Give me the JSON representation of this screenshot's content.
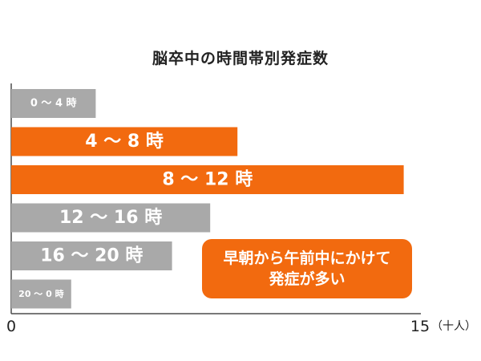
{
  "colors": {
    "highlight": "#f26a0f",
    "normal": "#a9a9a9",
    "axis": "#4d4d4d",
    "text": "#222222"
  },
  "chart_data": {
    "type": "bar",
    "orientation": "horizontal",
    "title": "脳卒中の時間帯別発症数",
    "categories": [
      "0～4時",
      "4～8時",
      "8～12時",
      "12～16時",
      "16～20時",
      "20～0時"
    ],
    "bar_labels": [
      "0 ～ 4 時",
      "4 ～ 8 時",
      "8 ～ 12 時",
      "12 ～ 16 時",
      "16 ～ 20 時",
      "20 ～ 0 時"
    ],
    "values": [
      3.1,
      8.3,
      14.4,
      7.3,
      5.9,
      2.2
    ],
    "highlighted": [
      false,
      true,
      true,
      false,
      false,
      false
    ],
    "xlim": [
      0,
      15
    ],
    "x_tick_min": "0",
    "x_tick_max": "15",
    "x_unit": "（十人）",
    "grid": false,
    "annotation": {
      "line1": "早朝から午前中にかけて",
      "line2": "発症が多い"
    }
  }
}
